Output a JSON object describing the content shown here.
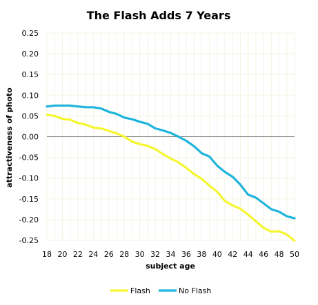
{
  "chart_data": {
    "type": "line",
    "title": "The Flash Adds 7 Years",
    "xlabel": "subject age",
    "ylabel": "attractiveness of photo",
    "xlim": [
      18,
      50
    ],
    "ylim": [
      -0.25,
      0.25
    ],
    "x_ticks": [
      18,
      20,
      22,
      24,
      26,
      28,
      30,
      32,
      34,
      36,
      38,
      40,
      42,
      44,
      46,
      48,
      50
    ],
    "y_ticks": [
      -0.25,
      -0.2,
      -0.15,
      -0.1,
      -0.05,
      0,
      0.05,
      0.1,
      0.15,
      0.2,
      0.25
    ],
    "y_tick_labels": [
      "-0.25",
      "-0.20",
      "-0.15",
      "-0.10",
      "-0.05",
      "0.00",
      "0.05",
      "0.10",
      "0.15",
      "0.20",
      "0.25"
    ],
    "grid": true,
    "legend": "bottom",
    "series": [
      {
        "name": "Flash",
        "color": "#f5f530",
        "x": [
          18,
          19,
          20,
          21,
          22,
          23,
          24,
          25,
          26,
          27,
          28,
          29,
          30,
          31,
          32,
          33,
          34,
          35,
          36,
          37,
          38,
          39,
          40,
          41,
          42,
          43,
          44,
          45,
          46,
          47,
          48,
          49,
          50
        ],
        "y": [
          0.053,
          0.05,
          0.043,
          0.041,
          0.033,
          0.029,
          0.022,
          0.02,
          0.014,
          0.008,
          0.0,
          -0.012,
          -0.018,
          -0.022,
          -0.03,
          -0.042,
          -0.053,
          -0.062,
          -0.075,
          -0.09,
          -0.102,
          -0.118,
          -0.133,
          -0.155,
          -0.166,
          -0.174,
          -0.188,
          -0.204,
          -0.22,
          -0.229,
          -0.228,
          -0.236,
          -0.251
        ]
      },
      {
        "name": "No Flash",
        "color": "#1eb4dc",
        "x": [
          18,
          19,
          20,
          21,
          22,
          23,
          24,
          25,
          26,
          27,
          28,
          29,
          30,
          31,
          32,
          33,
          34,
          35,
          36,
          37,
          38,
          39,
          40,
          41,
          42,
          43,
          44,
          45,
          46,
          47,
          48,
          49,
          50
        ],
        "y": [
          0.073,
          0.075,
          0.075,
          0.075,
          0.073,
          0.071,
          0.071,
          0.068,
          0.06,
          0.055,
          0.046,
          0.042,
          0.036,
          0.031,
          0.02,
          0.015,
          0.009,
          0.0,
          -0.01,
          -0.023,
          -0.04,
          -0.048,
          -0.07,
          -0.085,
          -0.097,
          -0.116,
          -0.14,
          -0.147,
          -0.161,
          -0.175,
          -0.181,
          -0.192,
          -0.197
        ]
      }
    ]
  }
}
